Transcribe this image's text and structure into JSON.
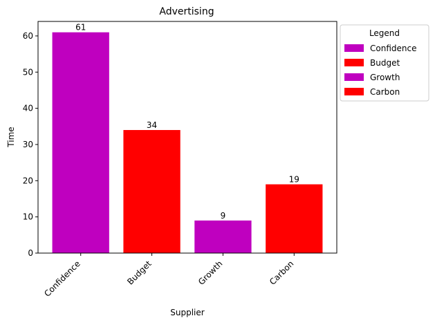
{
  "chart_data": {
    "type": "bar",
    "title": "Advertising",
    "xlabel": "Supplier",
    "ylabel": "Time",
    "categories": [
      "Confidence",
      "Budget",
      "Growth",
      "Carbon"
    ],
    "values": [
      61,
      34,
      9,
      19
    ],
    "bar_colors": [
      "#bf00bf",
      "#ff0000",
      "#bf00bf",
      "#ff0000"
    ],
    "ylim": [
      0,
      64
    ],
    "yticks": [
      0,
      10,
      20,
      30,
      40,
      50,
      60
    ],
    "grid": false,
    "legend": {
      "title": "Legend",
      "placement": "outside-upper-right",
      "entries": [
        {
          "label": "Confidence",
          "color": "#bf00bf"
        },
        {
          "label": "Budget",
          "color": "#ff0000"
        },
        {
          "label": "Growth",
          "color": "#bf00bf"
        },
        {
          "label": "Carbon",
          "color": "#ff0000"
        }
      ]
    }
  }
}
